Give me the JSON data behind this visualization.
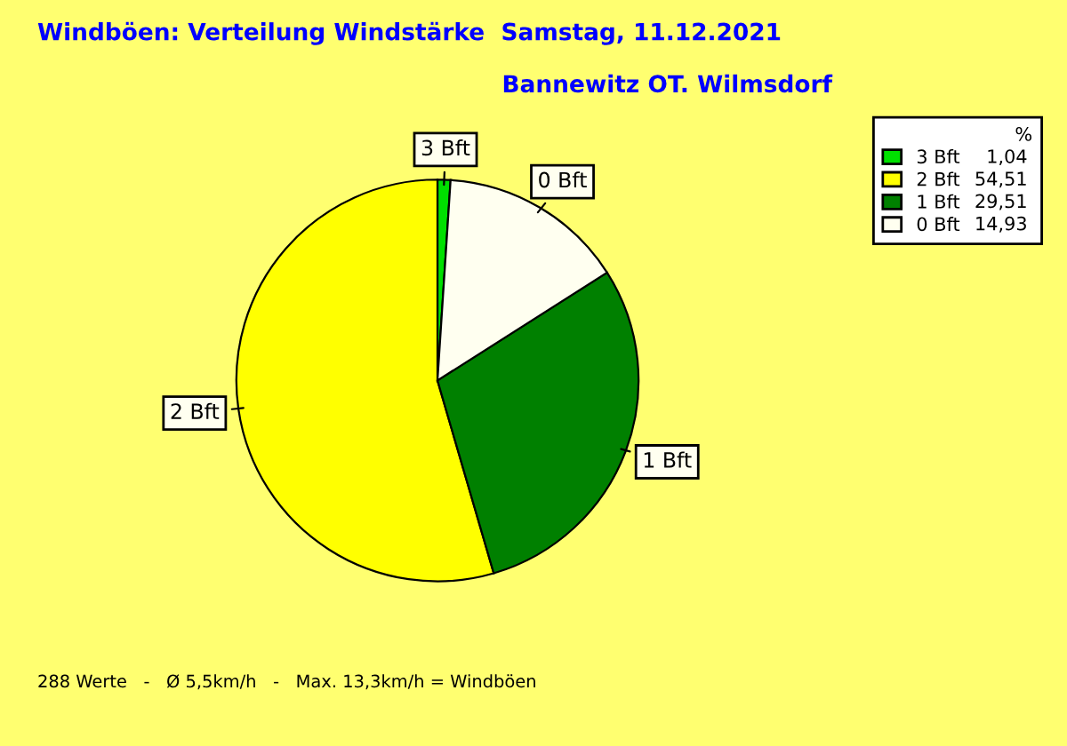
{
  "chart_data": {
    "type": "pie",
    "title": "Windböen: Verteilung Windstärke  Samstag, 11.12.2021",
    "subtitle": "Bannewitz OT. Wilmsdorf",
    "categories": [
      "3 Bft",
      "2 Bft",
      "1 Bft",
      "0 Bft"
    ],
    "values": [
      1.04,
      54.51,
      29.51,
      14.93
    ],
    "value_labels": [
      "1,04",
      "54,51",
      "29,51",
      "14,93"
    ],
    "colors": [
      "#00e000",
      "#ffff00",
      "#008000",
      "#fffff0"
    ],
    "legend": "top right",
    "legend_title": "%",
    "annotations": [
      "288 Werte   -   Ø 5,5km/h   -   Max. 13,3km/h = Windböen"
    ]
  }
}
